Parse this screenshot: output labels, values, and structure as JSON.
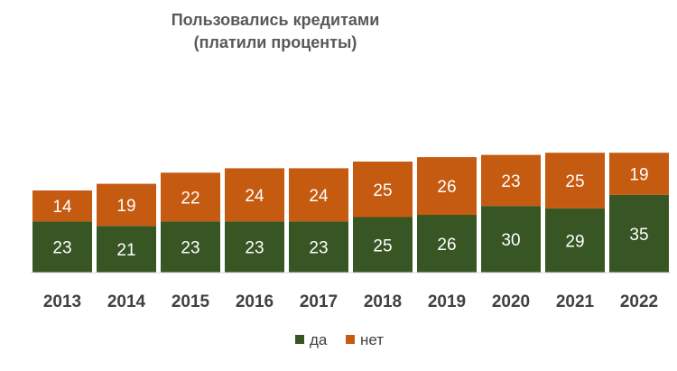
{
  "chart_data": {
    "type": "bar",
    "stacked": true,
    "title_lines": [
      "Пользовались кредитами",
      "(платили проценты)"
    ],
    "categories": [
      "2013",
      "2014",
      "2015",
      "2016",
      "2017",
      "2018",
      "2019",
      "2020",
      "2021",
      "2022"
    ],
    "series": [
      {
        "name": "да",
        "color": "#375623",
        "values": [
          23,
          21,
          23,
          23,
          23,
          25,
          26,
          30,
          29,
          35
        ]
      },
      {
        "name": "нет",
        "color": "#C55A11",
        "values": [
          14,
          19,
          22,
          24,
          24,
          25,
          26,
          23,
          25,
          19
        ]
      }
    ],
    "xlabel": "",
    "ylabel": "",
    "ylim": [
      0,
      54
    ],
    "grid": false,
    "legend_position": "bottom"
  }
}
